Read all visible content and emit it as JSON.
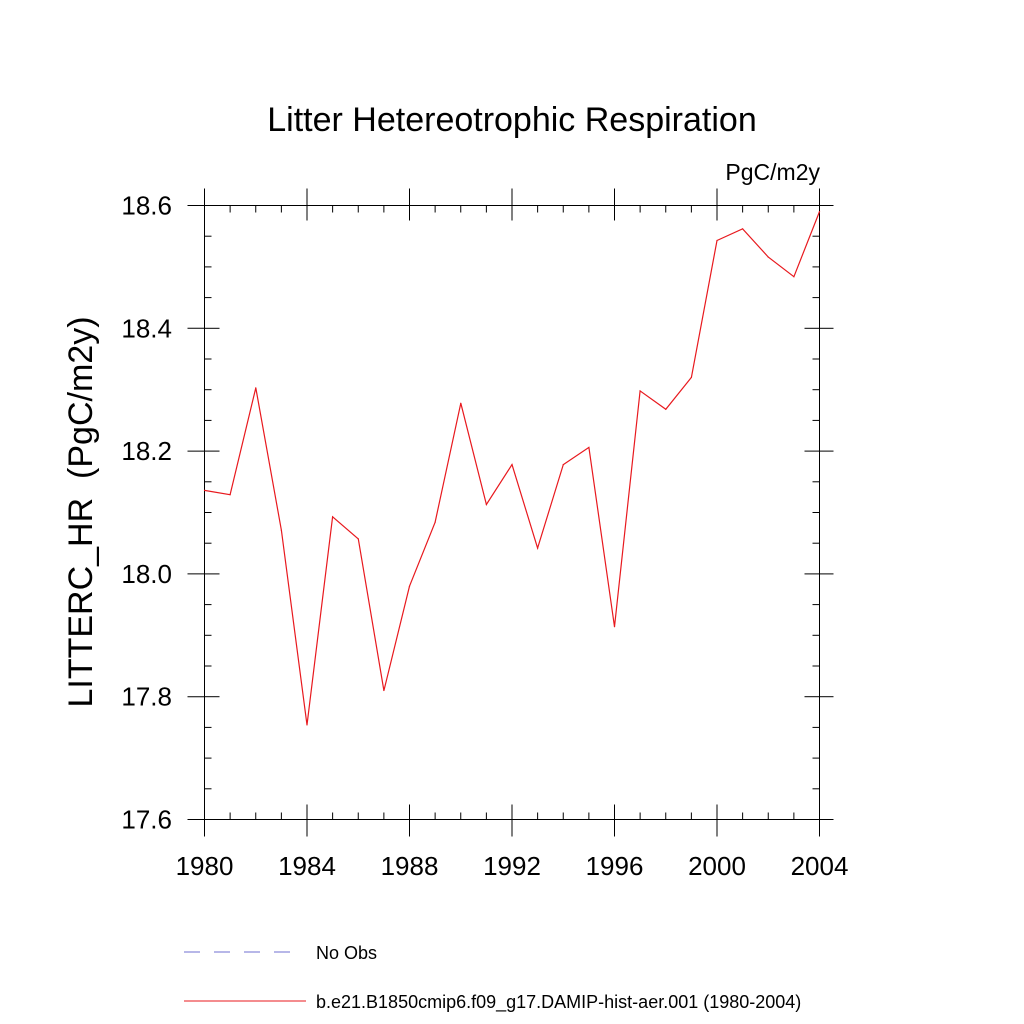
{
  "chart_data": {
    "type": "line",
    "title": "Litter Hetereotrophic Respiration",
    "units_label": "PgC/m2y",
    "ylabel": "LITTERC_HR  (PgC/m2y)",
    "xlabel": "",
    "xlim": [
      1980,
      2004
    ],
    "ylim": [
      17.6,
      18.6
    ],
    "x_ticks": [
      "1980",
      "1984",
      "1988",
      "1992",
      "1996",
      "2000",
      "2004"
    ],
    "y_ticks": [
      "17.6",
      "17.8",
      "18.0",
      "18.2",
      "18.4",
      "18.6"
    ],
    "grid": false,
    "legend": [
      {
        "label": "No Obs",
        "color": "#6f6fd0",
        "style": "dashed"
      },
      {
        "label": "b.e21.B1850cmip6.f09_g17.DAMIP-hist-aer.001 (1980-2004)",
        "color": "#e8191e",
        "style": "solid"
      }
    ],
    "series": [
      {
        "color": "#e8191e",
        "x": [
          1980,
          1981,
          1982,
          1983,
          1984,
          1985,
          1986,
          1987,
          1988,
          1989,
          1990,
          1991,
          1992,
          1993,
          1994,
          1995,
          1996,
          1997,
          1998,
          1999,
          2000,
          2001,
          2002,
          2003,
          2004
        ],
        "values": [
          18.136,
          18.129,
          18.303,
          18.071,
          17.754,
          18.093,
          18.057,
          17.81,
          17.98,
          18.084,
          18.278,
          18.113,
          18.178,
          18.042,
          18.178,
          18.206,
          17.914,
          18.298,
          18.268,
          18.32,
          18.543,
          18.562,
          18.516,
          18.484,
          18.59
        ]
      }
    ]
  }
}
